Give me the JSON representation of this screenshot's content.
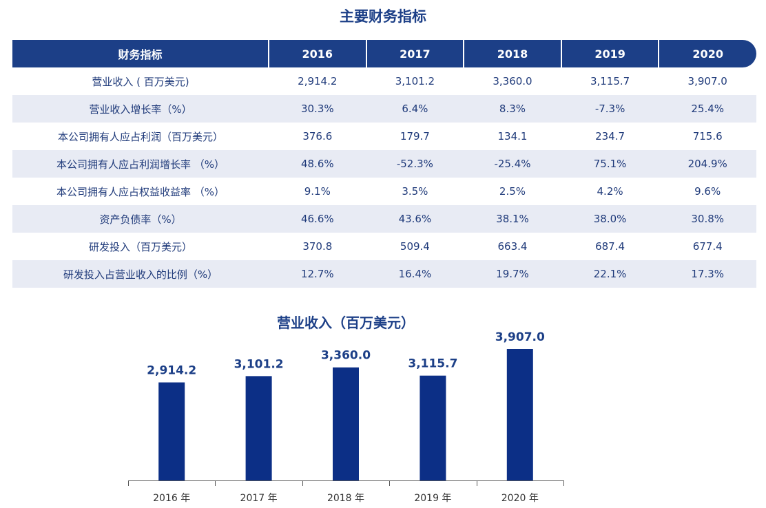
{
  "title": "主要财务指标",
  "table": {
    "header": [
      "财务指标",
      "2016",
      "2017",
      "2018",
      "2019",
      "2020"
    ],
    "rows": [
      [
        "营业收入 ( 百万美元)",
        "2,914.2",
        "3,101.2",
        "3,360.0",
        "3,115.7",
        "3,907.0"
      ],
      [
        "营业收入增长率（%）",
        "30.3%",
        "6.4%",
        "8.3%",
        "-7.3%",
        "25.4%"
      ],
      [
        "本公司拥有人应占利润（百万美元）",
        "376.6",
        "179.7",
        "134.1",
        "234.7",
        "715.6"
      ],
      [
        "本公司拥有人应占利润增长率 （%）",
        "48.6%",
        "-52.3%",
        "-25.4%",
        "75.1%",
        "204.9%"
      ],
      [
        "本公司拥有人应占权益收益率 （%）",
        "9.1%",
        "3.5%",
        "2.5%",
        "4.2%",
        "9.6%"
      ],
      [
        "资产负债率（%）",
        "46.6%",
        "43.6%",
        "38.1%",
        "38.0%",
        "30.8%"
      ],
      [
        "研发投入（百万美元）",
        "370.8",
        "509.4",
        "663.4",
        "687.4",
        "677.4"
      ],
      [
        "研发投入占营业收入的比例（%）",
        "12.7%",
        "16.4%",
        "19.7%",
        "22.1%",
        "17.3%"
      ]
    ]
  },
  "chart_data": {
    "type": "bar",
    "title": "营业收入（百万美元）",
    "categories": [
      "2016 年",
      "2017 年",
      "2018 年",
      "2019 年",
      "2020 年"
    ],
    "values": [
      2914.2,
      3101.2,
      3360.0,
      3115.7,
      3907.0
    ],
    "data_labels": [
      "2,914.2",
      "3,101.2",
      "3,360.0",
      "3,115.7",
      "3,907.0"
    ],
    "ylim": [
      0,
      3907.0
    ],
    "grid": false,
    "bar_color": "#0c2f86"
  },
  "colors": {
    "primary": "#1c3f87",
    "row_alt": "#e8ebf4",
    "text": "#1f3a7a"
  }
}
